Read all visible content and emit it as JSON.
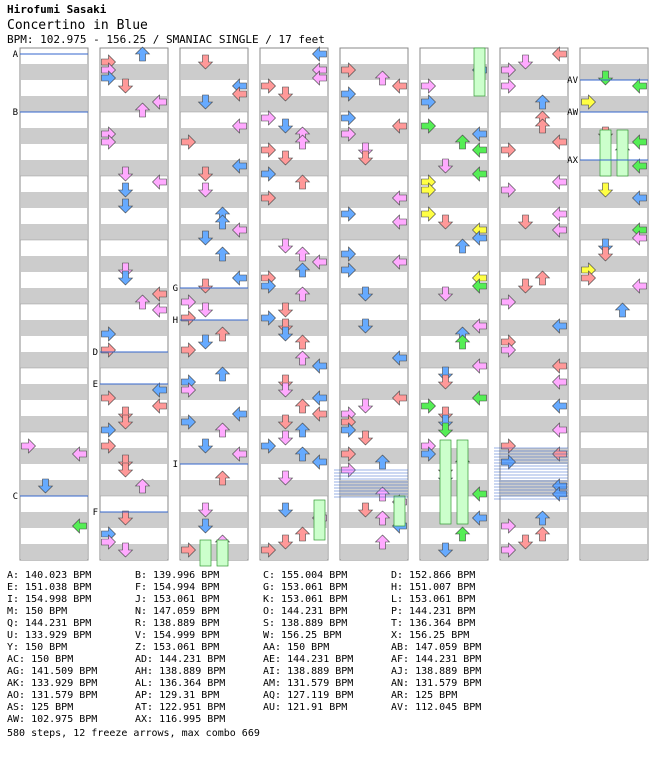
{
  "header": {
    "artist": "Hirofumi Sasaki",
    "title": "Concertino in Blue",
    "info": "BPM: 102.975 - 156.25 / SMANIAC SINGLE / 17 feet"
  },
  "summary": "580 steps, 12 freeze arrows, max combo 669",
  "colors": {
    "quarter": "#ff9999",
    "eighth": "#66aaff",
    "sixteenth": "#ffaaff",
    "twelfth": "#55ee55",
    "twentyfourth": "#ffff44",
    "freeze": "#ccffcc",
    "measure_band": "#cccccc",
    "bpm_line": "#3366cc"
  },
  "markers": [
    "A",
    "B",
    "C",
    "D",
    "E",
    "F",
    "G",
    "H",
    "I",
    "AV",
    "AW",
    "AX"
  ],
  "bpm_columns": [
    [
      "A: 140.023 BPM",
      "E: 151.038 BPM",
      "I: 154.998 BPM",
      "M: 150 BPM",
      "Q: 144.231 BPM",
      "U: 133.929 BPM",
      "Y: 150 BPM",
      "AC: 150 BPM",
      "AG: 141.509 BPM",
      "AK: 133.929 BPM",
      "AO: 131.579 BPM",
      "AS: 125 BPM",
      "AW: 102.975 BPM"
    ],
    [
      "B: 139.996 BPM",
      "F: 154.994 BPM",
      "J: 153.061 BPM",
      "N: 147.059 BPM",
      "R: 138.889 BPM",
      "V: 154.999 BPM",
      "Z: 153.061 BPM",
      "AD: 144.231 BPM",
      "AH: 138.889 BPM",
      "AL: 136.364 BPM",
      "AP: 129.31 BPM",
      "AT: 122.951 BPM",
      "AX: 116.995 BPM"
    ],
    [
      "C: 155.004 BPM",
      "G: 153.061 BPM",
      "K: 153.061 BPM",
      "O: 144.231 BPM",
      "S: 138.889 BPM",
      "W: 156.25 BPM",
      "AA: 150 BPM",
      "AE: 144.231 BPM",
      "AI: 138.889 BPM",
      "AM: 131.579 BPM",
      "AQ: 127.119 BPM",
      "AU: 121.91 BPM"
    ],
    [
      "D: 152.866 BPM",
      "H: 151.007 BPM",
      "L: 153.061 BPM",
      "P: 144.231 BPM",
      "T: 136.364 BPM",
      "X: 156.25 BPM",
      "AB: 147.059 BPM",
      "AF: 144.231 BPM",
      "AJ: 138.889 BPM",
      "AN: 131.579 BPM",
      "AR: 125 BPM",
      "AV: 112.045 BPM"
    ]
  ]
}
